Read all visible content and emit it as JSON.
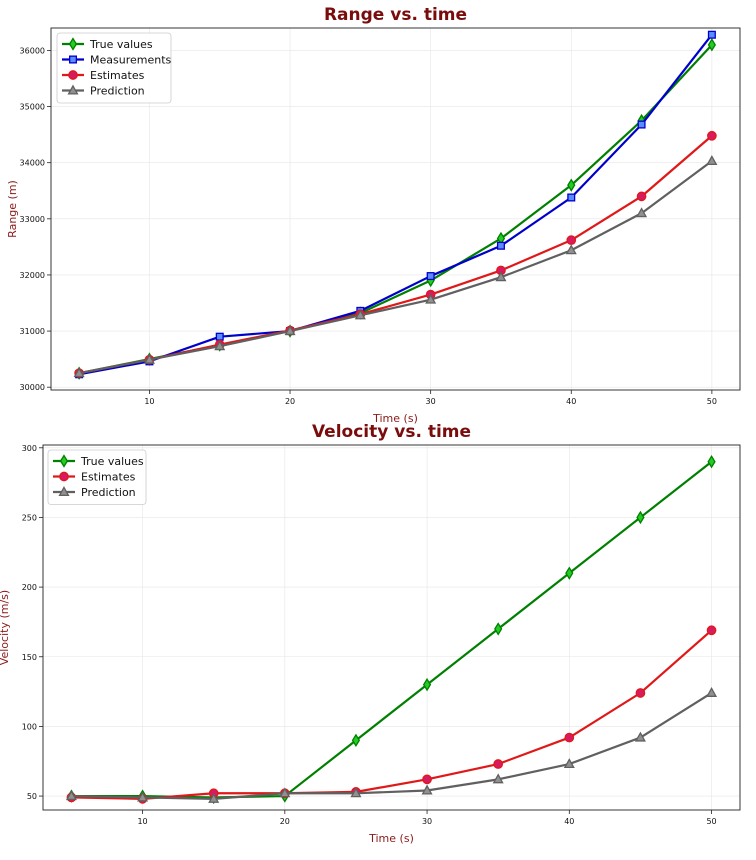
{
  "chart_data": [
    {
      "type": "line",
      "title": "Range vs. time",
      "xlabel": "Time (s)",
      "ylabel": "Range (m)",
      "xlim": [
        3,
        52
      ],
      "ylim": [
        29950,
        36400
      ],
      "xticks": [
        10,
        20,
        30,
        40,
        50
      ],
      "yticks": [
        30000,
        31000,
        32000,
        33000,
        34000,
        35000,
        36000
      ],
      "grid": true,
      "legend": "top-left",
      "x": [
        5,
        10,
        15,
        20,
        25,
        30,
        35,
        40,
        45,
        50
      ],
      "series": [
        {
          "name": "True values",
          "color": "#008000",
          "fill": "#22cc22",
          "marker": "diamond",
          "values": [
            30250,
            30500,
            30750,
            31000,
            31320,
            31900,
            32650,
            33600,
            34750,
            36100
          ]
        },
        {
          "name": "Measurements",
          "color": "#0000cc",
          "fill": "#5a8cff",
          "marker": "square",
          "values": [
            30230,
            30460,
            30900,
            31000,
            31360,
            31980,
            32520,
            33380,
            34680,
            36280
          ]
        },
        {
          "name": "Estimates",
          "color": "#e01818",
          "fill": "#d81b60",
          "marker": "circle",
          "values": [
            30250,
            30490,
            30760,
            31010,
            31300,
            31650,
            32080,
            32620,
            33400,
            34480
          ]
        },
        {
          "name": "Prediction",
          "color": "#606060",
          "fill": "#909090",
          "marker": "triangle",
          "values": [
            30250,
            30490,
            30730,
            31000,
            31280,
            31560,
            31960,
            32440,
            33100,
            34030
          ]
        }
      ]
    },
    {
      "type": "line",
      "title": "Velocity vs. time",
      "xlabel": "Time (s)",
      "ylabel": "Velocity (m/s)",
      "xlim": [
        3,
        52
      ],
      "ylim": [
        40,
        302
      ],
      "xticks": [
        10,
        20,
        30,
        40,
        50
      ],
      "yticks": [
        50,
        100,
        150,
        200,
        250,
        300
      ],
      "grid": true,
      "legend": "top-left",
      "x": [
        5,
        10,
        15,
        20,
        25,
        30,
        35,
        40,
        45,
        50
      ],
      "series": [
        {
          "name": "True values",
          "color": "#008000",
          "fill": "#22cc22",
          "marker": "diamond",
          "values": [
            50,
            50,
            49,
            50,
            90,
            130,
            170,
            210,
            250,
            290
          ]
        },
        {
          "name": "Estimates",
          "color": "#e01818",
          "fill": "#d81b60",
          "marker": "circle",
          "values": [
            49,
            48,
            52,
            52,
            53,
            62,
            73,
            92,
            124,
            169
          ]
        },
        {
          "name": "Prediction",
          "color": "#606060",
          "fill": "#909090",
          "marker": "triangle",
          "values": [
            50,
            49,
            48,
            52,
            52,
            54,
            62,
            73,
            92,
            124
          ]
        }
      ]
    }
  ]
}
